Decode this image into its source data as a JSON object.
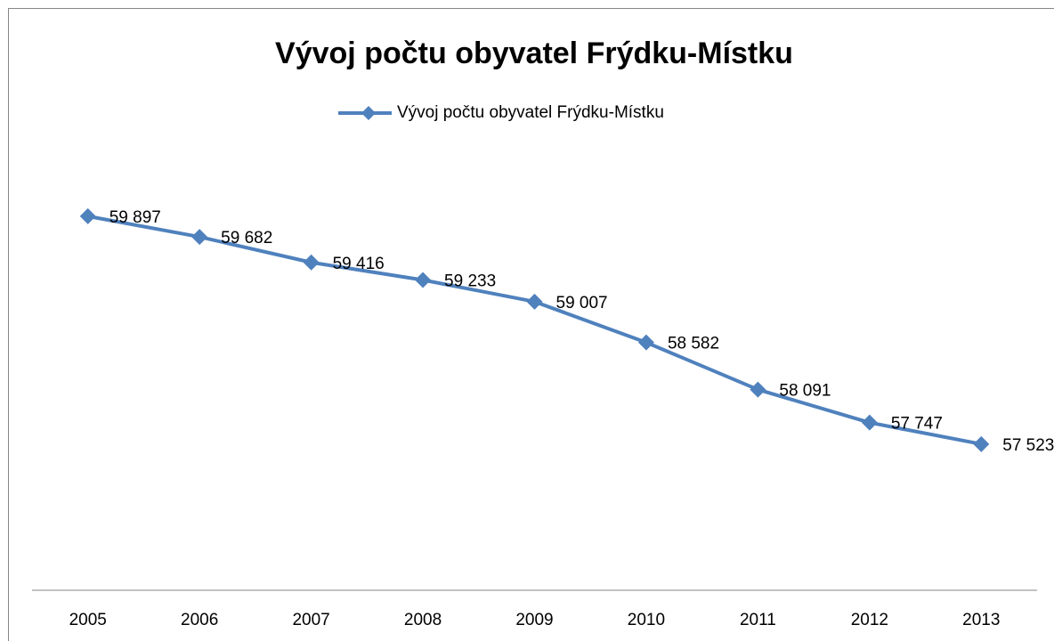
{
  "chart_data": {
    "type": "line",
    "title": "Vývoj počtu obyvatel Frýdku-Místku",
    "categories": [
      "2005",
      "2006",
      "2007",
      "2008",
      "2009",
      "2010",
      "2011",
      "2012",
      "2013"
    ],
    "series": [
      {
        "name": "Vývoj počtu obyvatel Frýdku-Místku",
        "color": "#4f81bd",
        "values": [
          59897,
          59682,
          59416,
          59233,
          59007,
          58582,
          58091,
          57747,
          57523
        ],
        "value_labels": [
          "59 897",
          "59 682",
          "59 416",
          "59 233",
          "59 007",
          "58 582",
          "58 091",
          "57 747",
          "57 523"
        ]
      }
    ],
    "ylim": [
      56000,
      61000
    ],
    "legend": "top"
  }
}
